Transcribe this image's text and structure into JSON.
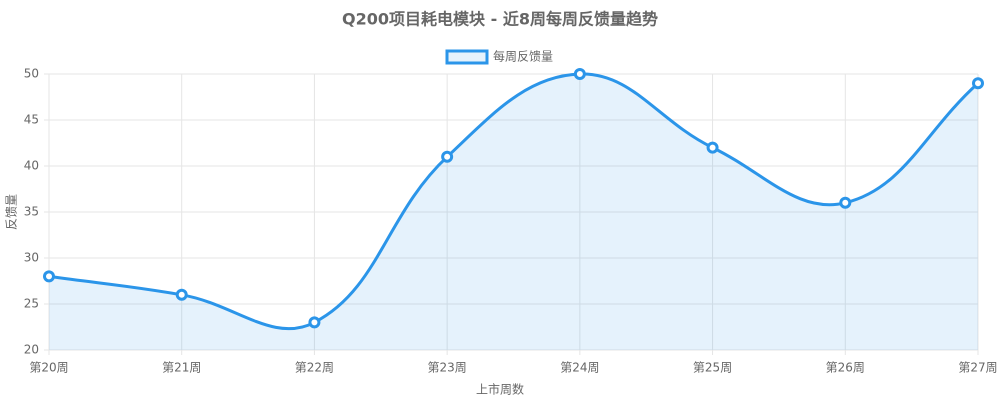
{
  "chart_data": {
    "type": "line",
    "title": "Q200项目耗电模块 - 近8周每周反馈量趋势",
    "categories": [
      "第20周",
      "第21周",
      "第22周",
      "第23周",
      "第24周",
      "第25周",
      "第26周",
      "第27周"
    ],
    "series": [
      {
        "name": "每周反馈量",
        "color": "#2b95e9",
        "values": [
          28,
          26,
          23,
          41,
          50,
          42,
          36,
          49
        ]
      }
    ],
    "xlabel": "上市周数",
    "ylabel": "反馈量",
    "ylim": [
      20,
      50
    ],
    "yticks": [
      20,
      25,
      30,
      35,
      40,
      45,
      50
    ],
    "grid": true,
    "legend": "top"
  }
}
